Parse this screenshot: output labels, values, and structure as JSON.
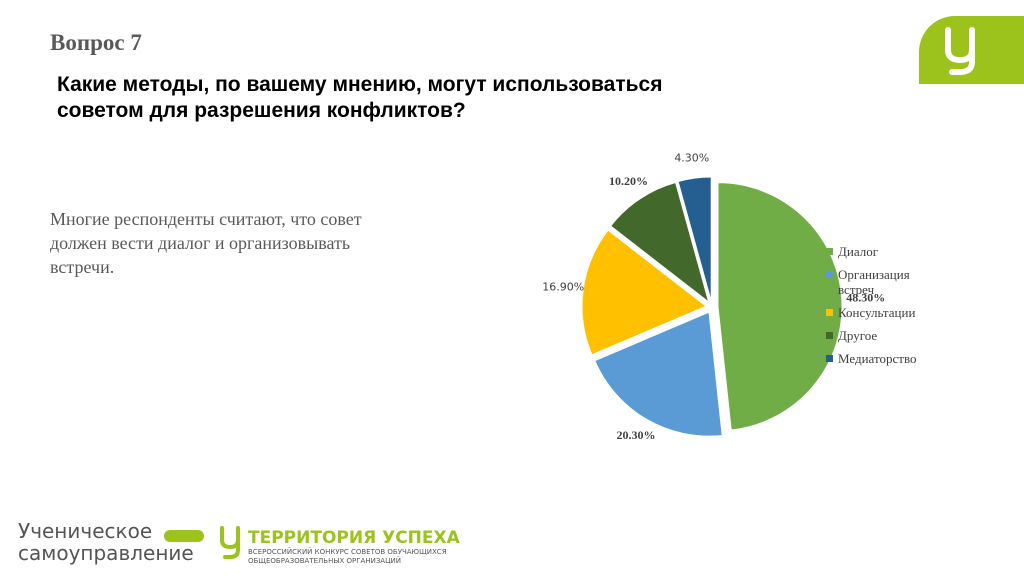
{
  "slide": {
    "heading": "Вопрос 7",
    "question": [
      "Какие методы, по вашему мнению, могут использоваться",
      "советом для разрешения конфликтов?"
    ],
    "body": [
      "Многие респонденты считают, что совет",
      "должен вести диалог и организовывать",
      "встречи."
    ],
    "logo_left": [
      "Ученическое",
      "самоуправление"
    ],
    "logo_right": [
      "ТЕРРИТОРИЯ УСПЕХА",
      "ВСЕРОССИЙСКИЙ КОНКУРС СОВЕТОВ ОБУЧАЮЩИХСЯ",
      "ОБЩЕОБРАЗОВАТЕЛЬНЫХ ОРГАНИЗАЦИЙ"
    ]
  },
  "chart_data": {
    "type": "pie",
    "categories": [
      "Диалог",
      "Организация встреч",
      "Консультации",
      "Другое",
      "Медиаторство"
    ],
    "values": [
      48.3,
      20.3,
      16.9,
      10.2,
      4.3
    ],
    "value_labels": [
      "48.30%",
      "20.30%",
      "16.90%",
      "10.20%",
      "4.30%"
    ],
    "colors": [
      "#70ad47",
      "#5b9bd5",
      "#ffc000",
      "#43682b",
      "#255e91"
    ]
  }
}
